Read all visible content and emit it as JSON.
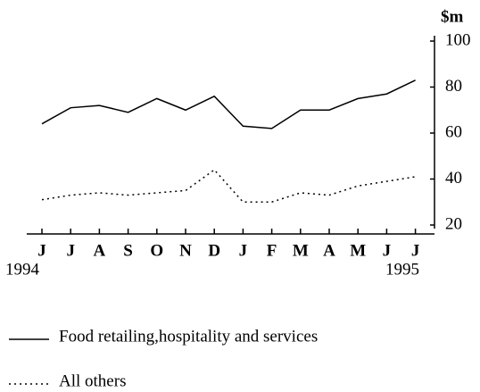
{
  "chart_data": {
    "type": "line",
    "y_unit": "$m",
    "categories": [
      "J",
      "J",
      "A",
      "S",
      "O",
      "N",
      "D",
      "J",
      "F",
      "M",
      "A",
      "M",
      "J",
      "J"
    ],
    "year_labels": [
      "1994",
      "1995"
    ],
    "series": [
      {
        "name": "Food retailing,hospitality and services",
        "color": "#000000",
        "dash": "solid",
        "values": [
          64,
          71,
          72,
          69,
          75,
          70,
          76,
          63,
          62,
          70,
          70,
          75,
          77,
          83
        ]
      },
      {
        "name": "All others",
        "color": "#000000",
        "dash": "dotted",
        "values": [
          31,
          33,
          34,
          33,
          34,
          35,
          44,
          30,
          30,
          34,
          33,
          37,
          39,
          41
        ]
      }
    ],
    "ylim": [
      20,
      100
    ],
    "yticks": [
      20,
      40,
      60,
      80,
      100
    ],
    "grid": false
  }
}
